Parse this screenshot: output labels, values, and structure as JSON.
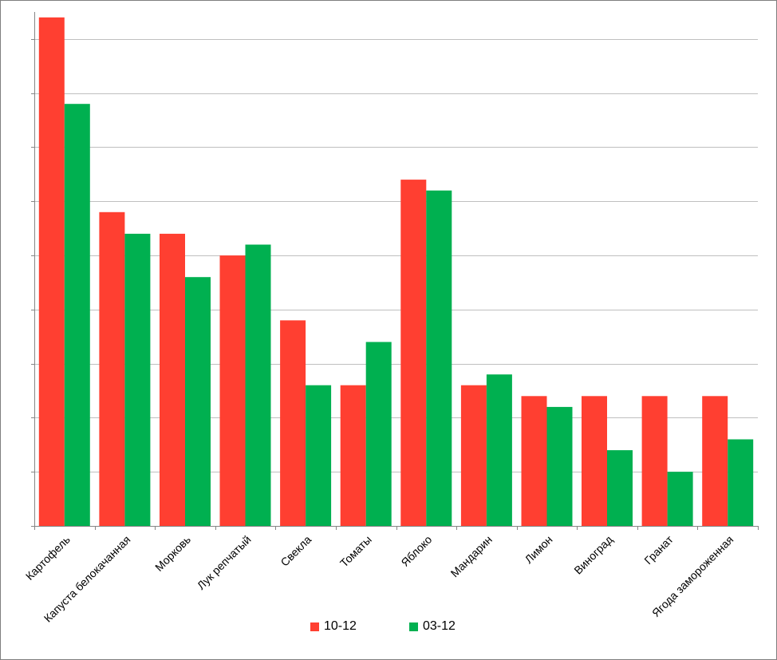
{
  "chart_data": {
    "type": "bar",
    "categories": [
      "Картофель",
      "Капуста белокачанная",
      "Морковь",
      "Лук репчатый",
      "Свекла",
      "Томаты",
      "Яблоко",
      "Мандарин",
      "Лимон",
      "Виноград",
      "Гранат",
      "Ягода замороженная"
    ],
    "series": [
      {
        "name": "10-12",
        "color": "#ff3f31",
        "values": [
          9.4,
          5.8,
          5.4,
          5.0,
          3.8,
          2.6,
          6.4,
          2.6,
          2.4,
          2.4,
          2.4,
          2.4
        ]
      },
      {
        "name": "03-12",
        "color": "#00b050",
        "values": [
          7.8,
          5.4,
          4.6,
          5.2,
          2.6,
          3.4,
          6.2,
          2.8,
          2.2,
          1.4,
          1.0,
          1.6
        ]
      }
    ],
    "ylim": [
      0,
      9.5
    ],
    "y_gridlines": [
      1,
      2,
      3,
      4,
      5,
      6,
      7,
      8,
      9
    ],
    "grid": true,
    "y_tick_labels_shown": false,
    "legend_position": "bottom",
    "gridline_color": "#bfbfbf",
    "axis_color": "#868686"
  }
}
